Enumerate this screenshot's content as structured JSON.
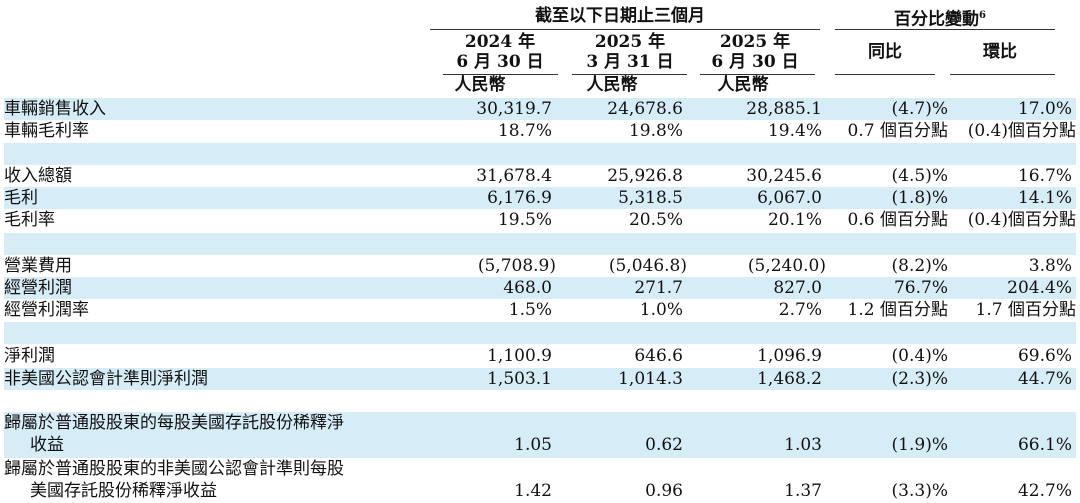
{
  "header": {
    "period_group": "截至以下日期止三個月",
    "change_group": "百分比變動",
    "change_footnote": "6",
    "columns": [
      {
        "line1": "2024 年",
        "line2": "6 月 30 日",
        "currency": "人民幣"
      },
      {
        "line1": "2025 年",
        "line2": "3 月 31 日",
        "currency": "人民幣"
      },
      {
        "line1": "2025 年",
        "line2": "6 月 30 日",
        "currency": "人民幣"
      }
    ],
    "yoy": "同比",
    "qoq": "環比"
  },
  "rows": [
    {
      "label": "車輛銷售收入",
      "v1": "30,319.7",
      "v2": "24,678.6",
      "v3": "28,885.1",
      "yoy": "(4.7)%",
      "qoq": "17.0%"
    },
    {
      "label": "車輛毛利率",
      "v1": "18.7%",
      "v2": "19.8%",
      "v3": "19.4%",
      "yoy": "0.7 個百分點",
      "qoq": "(0.4)個百分點"
    },
    {
      "label": "收入總額",
      "v1": "31,678.4",
      "v2": "25,926.8",
      "v3": "30,245.6",
      "yoy": "(4.5)%",
      "qoq": "16.7%"
    },
    {
      "label": "毛利",
      "v1": "6,176.9",
      "v2": "5,318.5",
      "v3": "6,067.0",
      "yoy": "(1.8)%",
      "qoq": "14.1%"
    },
    {
      "label": "毛利率",
      "v1": "19.5%",
      "v2": "20.5%",
      "v3": "20.1%",
      "yoy": "0.6 個百分點",
      "qoq": "(0.4)個百分點"
    },
    {
      "label": "營業費用",
      "v1": "(5,708.9)",
      "v2": "(5,046.8)",
      "v3": "(5,240.0)",
      "yoy": "(8.2)%",
      "qoq": "3.8%"
    },
    {
      "label": "經營利潤",
      "v1": "468.0",
      "v2": "271.7",
      "v3": "827.0",
      "yoy": "76.7%",
      "qoq": "204.4%"
    },
    {
      "label": "經營利潤率",
      "v1": "1.5%",
      "v2": "1.0%",
      "v3": "2.7%",
      "yoy": "1.2 個百分點",
      "qoq": "1.7 個百分點"
    },
    {
      "label": "淨利潤",
      "v1": "1,100.9",
      "v2": "646.6",
      "v3": "1,096.9",
      "yoy": "(0.4)%",
      "qoq": "69.6%"
    },
    {
      "label": "非美國公認會計準則淨利潤",
      "v1": "1,503.1",
      "v2": "1,014.3",
      "v3": "1,468.2",
      "yoy": "(2.3)%",
      "qoq": "44.7%"
    },
    {
      "label": "歸屬於普通股股東的每股美國存託股份稀釋淨",
      "label2": "收益",
      "v1": "1.05",
      "v2": "0.62",
      "v3": "1.03",
      "yoy": "(1.9)%",
      "qoq": "66.1%"
    },
    {
      "label": "歸屬於普通股股東的非美國公認會計準則每股",
      "label2": "美國存託股份稀釋淨收益",
      "v1": "1.42",
      "v2": "0.96",
      "v3": "1.37",
      "yoy": "(3.3)%",
      "qoq": "42.7%"
    }
  ]
}
